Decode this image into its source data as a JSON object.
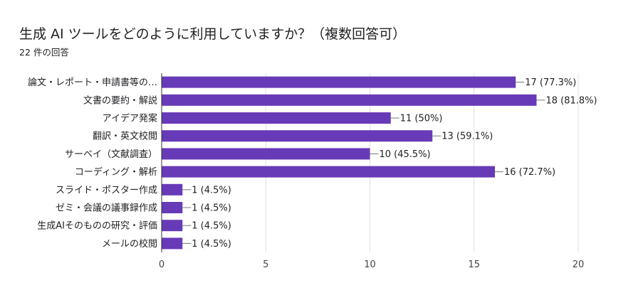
{
  "header": {
    "title": "生成 AI ツールをどのように利用していますか？（複数回答可）",
    "response_count": "22 件の回答"
  },
  "colors": {
    "bar": "#673ab7",
    "grid": "#e0e0e0",
    "axis": "#333333"
  },
  "chart_data": {
    "type": "bar",
    "orientation": "horizontal",
    "title": "生成 AI ツールをどのように利用していますか？（複数回答可）",
    "subtitle": "22 件の回答",
    "categories": [
      "論文・レポート・申請書等の…",
      "文書の要約・解説",
      "アイデア発案",
      "翻訳・英文校閲",
      "サーベイ（文献調査）",
      "コーディング・解析",
      "スライド・ポスター作成",
      "ゼミ・会議の議事録作成",
      "生成AIそのものの研究・評価",
      "メールの校閲"
    ],
    "values": [
      17,
      18,
      11,
      13,
      10,
      16,
      1,
      1,
      1,
      1
    ],
    "data_labels": [
      "17 (77.3%)",
      "18 (81.8%)",
      "11 (50%)",
      "13 (59.1%)",
      "10 (45.5%)",
      "16 (72.7%)",
      "1 (4.5%)",
      "1 (4.5%)",
      "1 (4.5%)",
      "1 (4.5%)"
    ],
    "xlim": [
      0,
      20
    ],
    "xticks": [
      0,
      5,
      10,
      15,
      20
    ],
    "grid": true,
    "legend": "none"
  }
}
